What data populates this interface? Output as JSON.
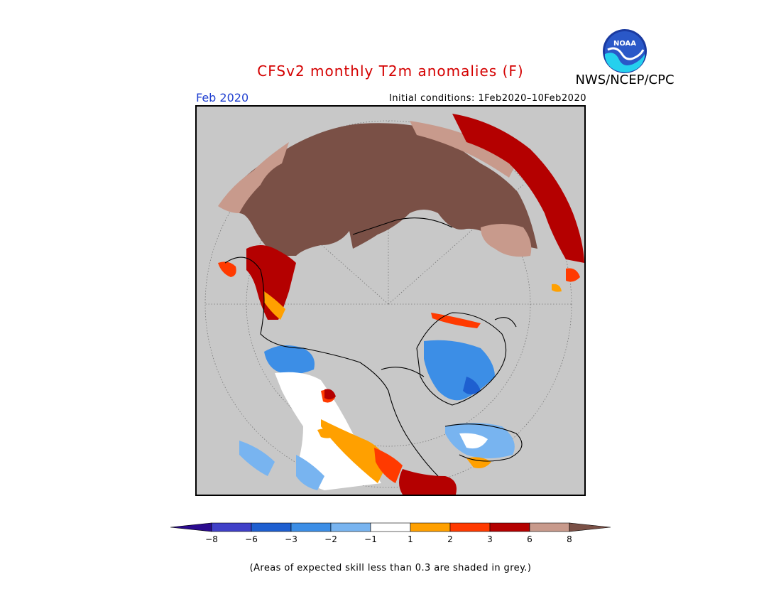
{
  "title": "CFSv2 monthly T2m anomalies (F)",
  "agency": "NWS/NCEP/CPC",
  "logo_text": "NOAA",
  "month_label": "Feb 2020",
  "initial_conditions": "Initial conditions: 1Feb2020–10Feb2020",
  "footnote": "(Areas of expected skill less than 0.3 are shaded in grey.)",
  "colors": {
    "map_background": "#c8c8c8",
    "skill_mask_grey": "#c8c8c8",
    "title": "#d40000",
    "month": "#1f3fd0"
  },
  "legend": {
    "bins": [
      {
        "color": "#2a0a8e"
      },
      {
        "color": "#4040c8"
      },
      {
        "color": "#1e5fd0"
      },
      {
        "color": "#3c8ee6"
      },
      {
        "color": "#78b4f0"
      },
      {
        "color": "#ffffff"
      },
      {
        "color": "#ffa000"
      },
      {
        "color": "#ff3a00"
      },
      {
        "color": "#b40000"
      },
      {
        "color": "#c89a8c"
      },
      {
        "color": "#7a5046"
      }
    ],
    "ticks": [
      "−8",
      "−6",
      "−3",
      "−2",
      "−1",
      "1",
      "2",
      "3",
      "6",
      "8"
    ]
  }
}
